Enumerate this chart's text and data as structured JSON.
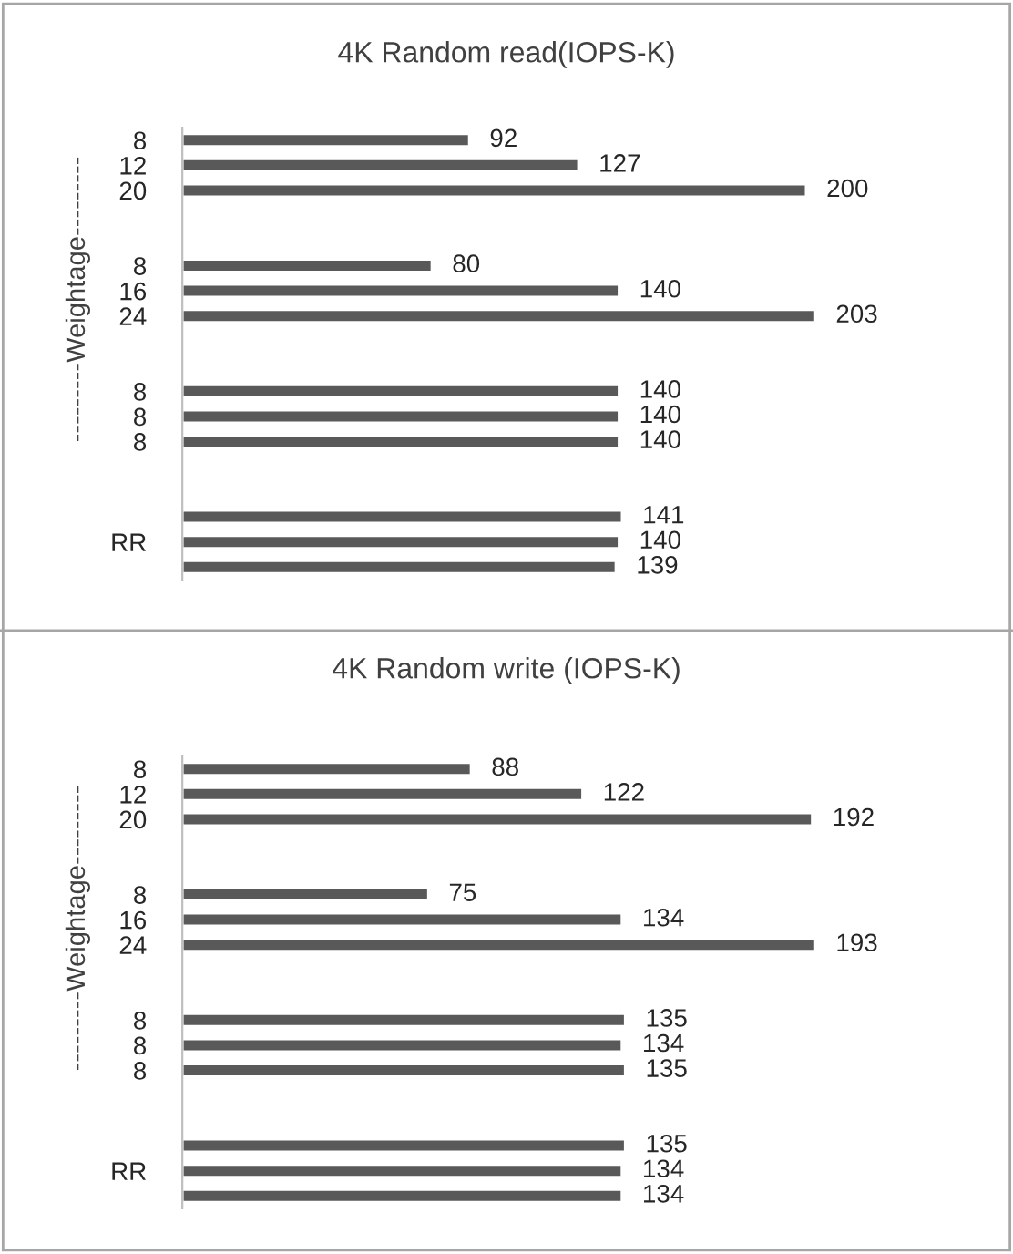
{
  "chart_data": [
    {
      "type": "bar",
      "orientation": "horizontal",
      "title": "4K Random read(IOPS-K)",
      "ylabel": "---------Weightage---------",
      "categories": [
        "8",
        "12",
        "20",
        null,
        null,
        "8",
        "16",
        "24",
        null,
        null,
        "8",
        "8",
        "8",
        null,
        null,
        null,
        "RR",
        null
      ],
      "series": [
        {
          "color": "#595959",
          "values": [
            92,
            127,
            200,
            null,
            null,
            80,
            140,
            203,
            null,
            null,
            140,
            140,
            140,
            null,
            null,
            141,
            140,
            139
          ]
        }
      ],
      "data_labels": true,
      "tick_labels": "y",
      "grid": false,
      "legend": false
    },
    {
      "type": "bar",
      "orientation": "horizontal",
      "title": "4K Random write (IOPS-K)",
      "ylabel": "---------Weightage---------",
      "categories": [
        "8",
        "12",
        "20",
        null,
        null,
        "8",
        "16",
        "24",
        null,
        null,
        "8",
        "8",
        "8",
        null,
        null,
        null,
        "RR",
        null
      ],
      "series": [
        {
          "color": "#595959",
          "values": [
            88,
            122,
            192,
            null,
            null,
            75,
            134,
            193,
            null,
            null,
            135,
            134,
            135,
            null,
            null,
            135,
            134,
            134
          ]
        }
      ],
      "data_labels": true,
      "tick_labels": "y",
      "grid": false,
      "legend": false
    }
  ]
}
